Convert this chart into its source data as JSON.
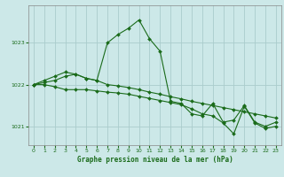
{
  "title": "Graphe pression niveau de la mer (hPa)",
  "bg_color": "#cce8e8",
  "grid_color": "#aacccc",
  "line_color": "#1a6b1a",
  "marker_color": "#1a6b1a",
  "xlim": [
    -0.5,
    23.5
  ],
  "ylim": [
    1020.55,
    1023.9
  ],
  "yticks": [
    1021,
    1022,
    1023
  ],
  "xticks": [
    0,
    1,
    2,
    3,
    4,
    5,
    6,
    7,
    8,
    9,
    10,
    11,
    12,
    13,
    14,
    15,
    16,
    17,
    18,
    19,
    20,
    21,
    22,
    23
  ],
  "series": [
    {
      "x": [
        0,
        1,
        2,
        3,
        4,
        5,
        6,
        7,
        8,
        9,
        10,
        11,
        12,
        13,
        14,
        15,
        16,
        17,
        18,
        19,
        20,
        21,
        22,
        23
      ],
      "y": [
        1022.0,
        1022.1,
        1022.2,
        1022.3,
        1022.25,
        1022.15,
        1022.1,
        1023.0,
        1023.2,
        1023.35,
        1023.55,
        1023.1,
        1022.8,
        1021.6,
        1021.55,
        1021.3,
        1021.25,
        1021.55,
        1021.1,
        1021.15,
        1021.5,
        1021.1,
        1021.0,
        1021.1
      ]
    },
    {
      "x": [
        0,
        1,
        2,
        3,
        4,
        5,
        6,
        7,
        8,
        9,
        10,
        11,
        12,
        13,
        14,
        15,
        16,
        17,
        18,
        19,
        20,
        21,
        22,
        23
      ],
      "y": [
        1022.0,
        1022.05,
        1022.1,
        1022.2,
        1022.25,
        1022.15,
        1022.1,
        1022.0,
        1021.97,
        1021.93,
        1021.88,
        1021.82,
        1021.77,
        1021.71,
        1021.66,
        1021.6,
        1021.55,
        1021.5,
        1021.45,
        1021.4,
        1021.35,
        1021.3,
        1021.25,
        1021.2
      ]
    },
    {
      "x": [
        0,
        1,
        2,
        3,
        4,
        5,
        6,
        7,
        8,
        9,
        10,
        11,
        12,
        13,
        14,
        15,
        16,
        17,
        18,
        19,
        20,
        21,
        22,
        23
      ],
      "y": [
        1022.0,
        1022.0,
        1021.95,
        1021.88,
        1021.88,
        1021.88,
        1021.85,
        1021.82,
        1021.8,
        1021.77,
        1021.72,
        1021.67,
        1021.62,
        1021.57,
        1021.52,
        1021.42,
        1021.3,
        1021.25,
        1021.08,
        1020.82,
        1021.48,
        1021.08,
        1020.95,
        1021.0
      ]
    }
  ]
}
